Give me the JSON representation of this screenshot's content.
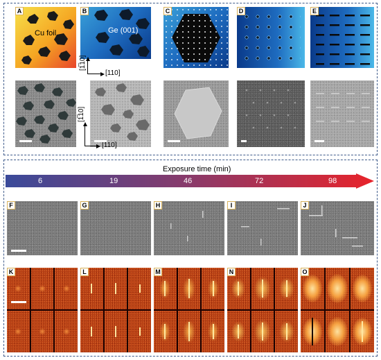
{
  "figure": {
    "panel_labels": [
      "A",
      "B",
      "C",
      "D",
      "E",
      "F",
      "G",
      "H",
      "I",
      "J",
      "K",
      "L",
      "M",
      "N",
      "O"
    ],
    "panel_a": {
      "label": "Cu foil"
    },
    "panel_b": {
      "label": "Ge (001)",
      "axis_vertical": "[1̅10]",
      "axis_horizontal": "[110]"
    },
    "panel_b_sem": {
      "axis_vertical": "[1̅10]",
      "axis_horizontal": "[110]"
    },
    "exposure": {
      "title": "Exposure time (min)",
      "ticks": [
        "6",
        "19",
        "46",
        "72",
        "98"
      ]
    },
    "colors": {
      "frame": "#3d5a8a",
      "label_border": "#d8b15a",
      "arrow_start": "#3a4a9a",
      "arrow_end": "#e8232a",
      "fft": "#b23a12"
    }
  }
}
